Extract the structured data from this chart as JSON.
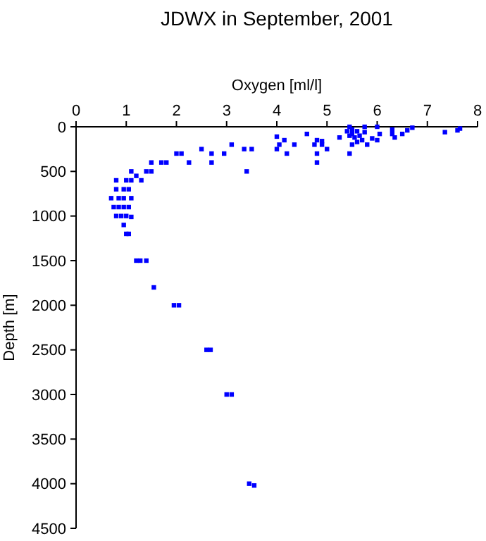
{
  "chart_data": {
    "type": "scatter",
    "title": "JDWX in September, 2001",
    "xlabel": "Oxygen [ml/l]",
    "ylabel": "Depth [m]",
    "xlim": [
      0,
      8
    ],
    "xticks": [
      0,
      1,
      2,
      3,
      4,
      5,
      6,
      7,
      8
    ],
    "ylim": [
      4500,
      0
    ],
    "yticks": [
      0,
      500,
      1000,
      1500,
      2000,
      2500,
      3000,
      3500,
      4000,
      4500
    ],
    "grid": false,
    "marker": "square",
    "series": [
      {
        "color": "#0000ff",
        "x": [
          1.55,
          1.95,
          2.05,
          2.6,
          2.68,
          3.0,
          3.1,
          3.45,
          3.55,
          1.2,
          1.28,
          1.4,
          1.0,
          1.05,
          0.95,
          0.8,
          0.9,
          1.0,
          1.1,
          0.75,
          0.85,
          0.95,
          1.05,
          0.7,
          0.85,
          0.95,
          1.1,
          0.8,
          0.95,
          1.05,
          0.8,
          1.0,
          1.1,
          1.3,
          1.2,
          1.1,
          1.4,
          1.5,
          1.5,
          1.7,
          1.8,
          2.25,
          2.7,
          2.0,
          2.1,
          2.7,
          2.95,
          2.5,
          3.35,
          3.5,
          3.4,
          3.1,
          4.0,
          4.2,
          4.05,
          4.35,
          4.0,
          4.15,
          4.6,
          4.75,
          4.8,
          4.9,
          4.9,
          5.0,
          4.8,
          4.8,
          5.45,
          5.25,
          5.4,
          5.45,
          5.5,
          5.5,
          5.55,
          5.5,
          5.6,
          5.65,
          5.7,
          5.75,
          5.75,
          5.8,
          5.9,
          6.0,
          6.0,
          6.05,
          6.3,
          6.3,
          6.35,
          6.5,
          6.6,
          6.7,
          7.35,
          7.6,
          7.65,
          5.6,
          5.45
        ],
        "values": [
          1800,
          2000,
          2000,
          2500,
          2500,
          3000,
          3000,
          4000,
          4020,
          1500,
          1500,
          1500,
          1200,
          1200,
          1100,
          1000,
          1000,
          1000,
          1010,
          900,
          900,
          900,
          900,
          800,
          800,
          800,
          800,
          700,
          700,
          700,
          600,
          600,
          600,
          600,
          550,
          500,
          500,
          500,
          400,
          400,
          400,
          400,
          400,
          300,
          300,
          300,
          300,
          250,
          250,
          250,
          500,
          200,
          250,
          300,
          200,
          200,
          110,
          150,
          80,
          200,
          150,
          160,
          200,
          250,
          300,
          400,
          300,
          120,
          50,
          0,
          30,
          80,
          120,
          200,
          50,
          100,
          150,
          0,
          60,
          200,
          130,
          0,
          150,
          80,
          30,
          80,
          120,
          80,
          40,
          10,
          60,
          40,
          20,
          170,
          100
        ]
      }
    ]
  }
}
